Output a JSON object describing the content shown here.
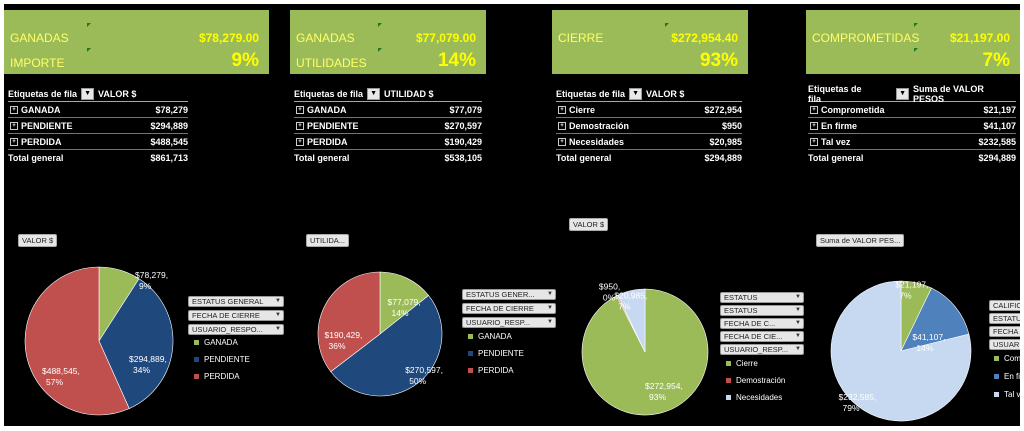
{
  "kpis": [
    {
      "label1": "GANADAS",
      "value": "$78,279.00",
      "label2": "IMPORTE",
      "pct": "9%"
    },
    {
      "label1": "GANADAS",
      "value": "$77,079.00",
      "label2": "UTILIDADES",
      "pct": "14%"
    },
    {
      "label1": "CIERRE",
      "value": "$272,954.40",
      "label2": "",
      "pct": "93%"
    },
    {
      "label1": "COMPROMETIDAS",
      "value": "$21,197.00",
      "label2": "",
      "pct": "7%"
    }
  ],
  "pivots": [
    {
      "row_header": "Etiquetas de fila",
      "value_header": "VALOR $",
      "rows": [
        {
          "label": "GANADA",
          "value": "$78,279"
        },
        {
          "label": "PENDIENTE",
          "value": "$294,889"
        },
        {
          "label": "PERDIDA",
          "value": "$488,545"
        }
      ],
      "total_label": "Total general",
      "total_value": "$861,713"
    },
    {
      "row_header": "Etiquetas de fila",
      "value_header": "UTILIDAD $",
      "rows": [
        {
          "label": "GANADA",
          "value": "$77,079"
        },
        {
          "label": "PENDIENTE",
          "value": "$270,597"
        },
        {
          "label": "PERDIDA",
          "value": "$190,429"
        }
      ],
      "total_label": "Total general",
      "total_value": "$538,105"
    },
    {
      "row_header": "Etiquetas de fila",
      "value_header": "VALOR $",
      "rows": [
        {
          "label": "Cierre",
          "value": "$272,954"
        },
        {
          "label": "Demostración",
          "value": "$950"
        },
        {
          "label": "Necesidades",
          "value": "$20,985"
        }
      ],
      "total_label": "Total general",
      "total_value": "$294,889"
    },
    {
      "row_header": "Etiquetas de fila",
      "value_header": "Suma de VALOR PESOS",
      "rows": [
        {
          "label": "Comprometida",
          "value": "$21,197"
        },
        {
          "label": "En firme",
          "value": "$41,107"
        },
        {
          "label": "Tal vez",
          "value": "$232,585"
        }
      ],
      "total_label": "Total general",
      "total_value": "$294,889"
    }
  ],
  "charts": [
    {
      "field_button": "VALOR $",
      "slicers": [
        "ESTATUS GENERAL",
        "FECHA DE CIERRE",
        "USUARIO_RESPO..."
      ],
      "legend": [
        "GANADA",
        "PENDIENTE",
        "PERDIDA"
      ],
      "labels": [
        "$78,279, 9%",
        "$294,889, 34%",
        "$488,545, 57%"
      ]
    },
    {
      "field_button": "UTILIDA...",
      "slicers": [
        "ESTATUS GENER...",
        "FECHA DE CIERRE",
        "USUARIO_RESP..."
      ],
      "legend": [
        "GANADA",
        "PENDIENTE",
        "PERDIDA"
      ],
      "labels": [
        "$77,079, 14%",
        "$270,597, 50%",
        "$190,429, 36%"
      ]
    },
    {
      "field_button": "VALOR $",
      "slicers": [
        "ESTATUS",
        "ESTATUS",
        "FECHA DE C...",
        "FECHA DE CIE...",
        "USUARIO_RESP..."
      ],
      "legend": [
        "Cierre",
        "Demostración",
        "Necesidades"
      ],
      "labels": [
        "$272,954, 93%",
        "$950, 0%",
        "$20,985, 7%"
      ]
    },
    {
      "field_button": "Suma de VALOR PES...",
      "slicers": [
        "CALIFIC",
        "ESTATU",
        "FECHA",
        "USUAR"
      ],
      "legend": [
        "Com",
        "En fi",
        "Tal v"
      ],
      "labels": [
        "$21,197, 7%",
        "$41,107, 14%",
        "$232,585, 79%"
      ]
    }
  ],
  "chart_data": [
    {
      "type": "pie",
      "categories": [
        "GANADA",
        "PENDIENTE",
        "PERDIDA"
      ],
      "values": [
        78279,
        294889,
        488545
      ],
      "colors": [
        "#9bbb59",
        "#1f497d",
        "#c0504d"
      ]
    },
    {
      "type": "pie",
      "categories": [
        "GANADA",
        "PENDIENTE",
        "PERDIDA"
      ],
      "values": [
        77079,
        270597,
        190429
      ],
      "colors": [
        "#9bbb59",
        "#1f497d",
        "#c0504d"
      ]
    },
    {
      "type": "pie",
      "categories": [
        "Cierre",
        "Demostración",
        "Necesidades"
      ],
      "values": [
        272954,
        950,
        20985
      ],
      "colors": [
        "#9bbb59",
        "#c0504d",
        "#c6d9f1"
      ]
    },
    {
      "type": "pie",
      "categories": [
        "Comprometida",
        "En firme",
        "Tal vez"
      ],
      "values": [
        21197,
        41107,
        232585
      ],
      "colors": [
        "#9bbb59",
        "#4f81bd",
        "#c6d9f1"
      ]
    }
  ],
  "colors": {
    "kpi_bg": "#9bbb59",
    "kpi_text": "#ffff00",
    "background": "#000000"
  }
}
